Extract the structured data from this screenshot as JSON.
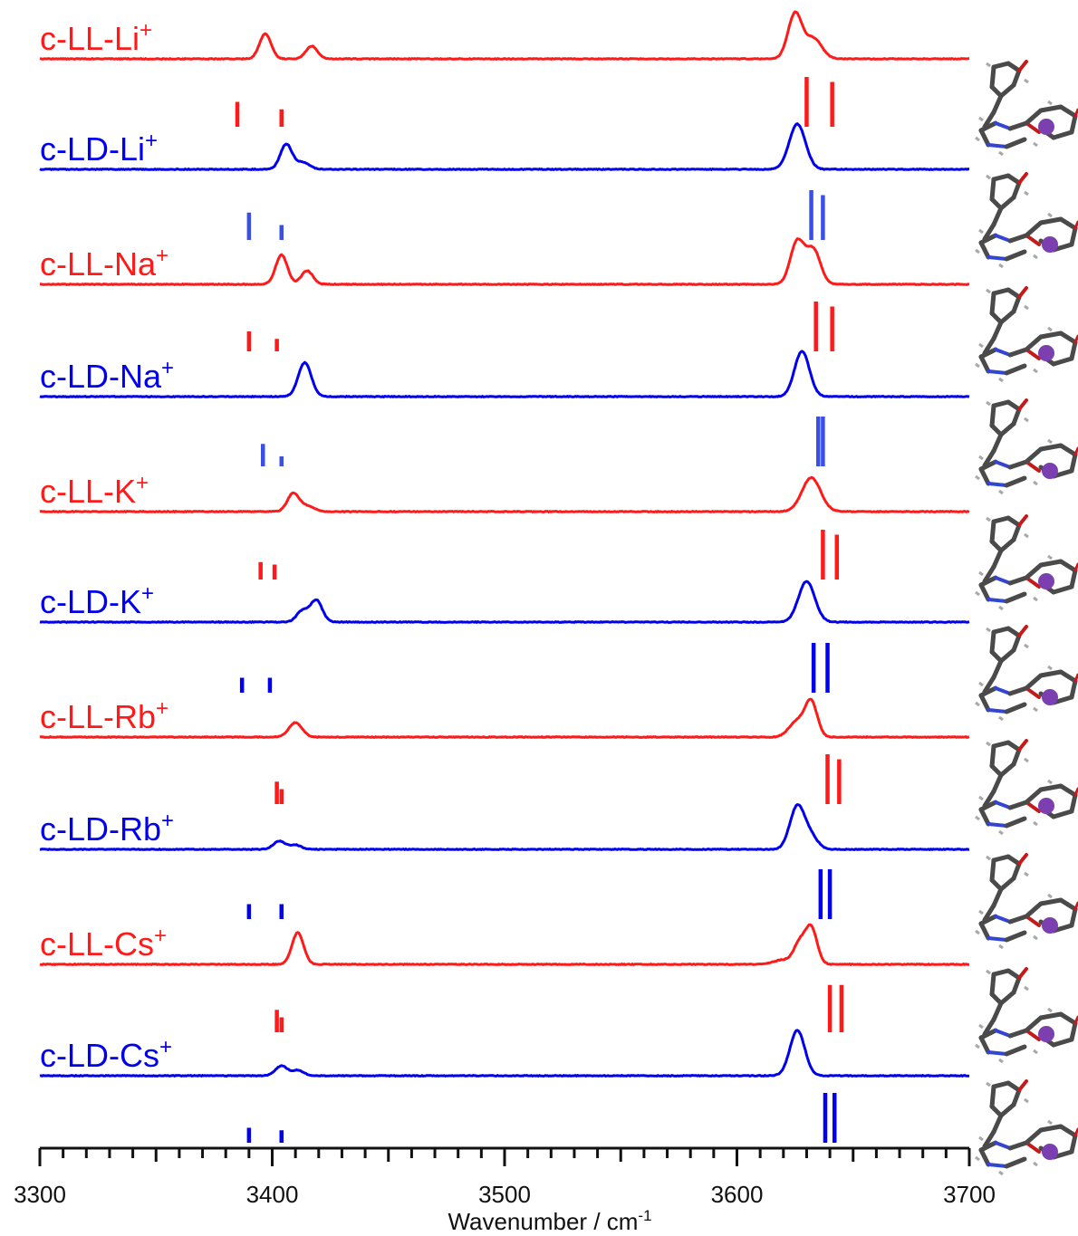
{
  "chart_data": {
    "type": "line",
    "xlabel": "Wavenumber / cm",
    "xlabel_superscript": "-1",
    "xlim": [
      3300,
      3700
    ],
    "x_ticks": [
      3300,
      3400,
      3500,
      3600,
      3700
    ],
    "minor_tick_step": 10,
    "grid": false,
    "colors": {
      "red": "#ff1a1a",
      "blue": "#0000ee",
      "stick_blue": "#3a4fe8",
      "atom_purple": "#7b3fb0"
    },
    "series": [
      {
        "label_base": "c-LL-Li",
        "label_sup": "+",
        "color": "red",
        "peaks": [
          [
            3397,
            0.55,
            2.5
          ],
          [
            3417,
            0.28,
            2.5
          ],
          [
            3625,
            1.0,
            3.0
          ],
          [
            3633,
            0.45,
            3.5
          ]
        ]
      },
      {
        "label_base": "c-LD-Li",
        "label_sup": "+",
        "color": "blue",
        "peaks": [
          [
            3406,
            0.55,
            2.5
          ],
          [
            3413,
            0.15,
            3.0
          ],
          [
            3626,
            1.0,
            3.5
          ]
        ]
      },
      {
        "label_base": "c-LL-Na",
        "label_sup": "+",
        "color": "red",
        "peaks": [
          [
            3404,
            0.65,
            2.5
          ],
          [
            3415,
            0.3,
            2.5
          ],
          [
            3626,
            0.95,
            3.0
          ],
          [
            3633,
            0.75,
            3.0
          ]
        ]
      },
      {
        "label_base": "c-LD-Na",
        "label_sup": "+",
        "color": "blue",
        "peaks": [
          [
            3414,
            0.75,
            2.8
          ],
          [
            3628,
            1.0,
            3.2
          ]
        ]
      },
      {
        "label_base": "c-LL-K",
        "label_sup": "+",
        "color": "red",
        "peaks": [
          [
            3409,
            0.4,
            2.5
          ],
          [
            3415,
            0.12,
            3.0
          ],
          [
            3632,
            0.75,
            4.0
          ]
        ]
      },
      {
        "label_base": "c-LD-K",
        "label_sup": "+",
        "color": "blue",
        "peaks": [
          [
            3413,
            0.25,
            2.5
          ],
          [
            3419,
            0.48,
            2.5
          ],
          [
            3630,
            0.9,
            3.5
          ]
        ]
      },
      {
        "label_base": "c-LL-Rb",
        "label_sup": "+",
        "color": "red",
        "peaks": [
          [
            3410,
            0.32,
            2.8
          ],
          [
            3626,
            0.35,
            3.5
          ],
          [
            3632,
            0.75,
            2.6
          ]
        ]
      },
      {
        "label_base": "c-LD-Rb",
        "label_sup": "+",
        "color": "blue",
        "peaks": [
          [
            3403,
            0.18,
            2.5
          ],
          [
            3410,
            0.1,
            2.5
          ],
          [
            3626,
            0.95,
            3.2
          ],
          [
            3632,
            0.25,
            3.0
          ]
        ]
      },
      {
        "label_base": "c-LL-Cs",
        "label_sup": "+",
        "color": "red",
        "peaks": [
          [
            3411,
            0.7,
            2.5
          ],
          [
            3620,
            0.1,
            4.0
          ],
          [
            3627,
            0.45,
            2.5
          ],
          [
            3632,
            0.8,
            2.5
          ]
        ]
      },
      {
        "label_base": "c-LD-Cs",
        "label_sup": "+",
        "color": "blue",
        "peaks": [
          [
            3404,
            0.22,
            2.5
          ],
          [
            3411,
            0.12,
            2.5
          ],
          [
            3626,
            1.0,
            3.2
          ]
        ]
      }
    ],
    "stick_spectra": [
      {
        "color": "red",
        "sticks": [
          [
            3385,
            0.5
          ],
          [
            3404,
            0.35
          ],
          [
            3630,
            1.0
          ],
          [
            3641,
            0.9
          ]
        ]
      },
      {
        "color": "stick_blue",
        "sticks": [
          [
            3390,
            0.55
          ],
          [
            3404,
            0.3
          ],
          [
            3632,
            1.0
          ],
          [
            3637,
            0.9
          ]
        ]
      },
      {
        "color": "red",
        "sticks": [
          [
            3390,
            0.4
          ],
          [
            3402,
            0.25
          ],
          [
            3634,
            1.0
          ],
          [
            3641,
            0.9
          ]
        ]
      },
      {
        "color": "stick_blue",
        "sticks": [
          [
            3396,
            0.45
          ],
          [
            3404,
            0.2
          ],
          [
            3635,
            1.0
          ],
          [
            3637,
            1.0
          ]
        ]
      },
      {
        "color": "red",
        "sticks": [
          [
            3395,
            0.35
          ],
          [
            3401,
            0.3
          ],
          [
            3637,
            1.0
          ],
          [
            3643,
            0.9
          ]
        ]
      },
      {
        "color": "blue",
        "sticks": [
          [
            3387,
            0.3
          ],
          [
            3399,
            0.3
          ],
          [
            3633,
            1.0
          ],
          [
            3639,
            1.0
          ]
        ]
      },
      {
        "color": "red",
        "sticks": [
          [
            3402,
            0.45
          ],
          [
            3404,
            0.3
          ],
          [
            3639,
            1.0
          ],
          [
            3644,
            0.9
          ]
        ]
      },
      {
        "color": "blue",
        "sticks": [
          [
            3390,
            0.3
          ],
          [
            3404,
            0.3
          ],
          [
            3636,
            1.0
          ],
          [
            3640,
            1.0
          ]
        ]
      },
      {
        "color": "red",
        "sticks": [
          [
            3402,
            0.45
          ],
          [
            3404,
            0.3
          ],
          [
            3640,
            0.95
          ],
          [
            3645,
            0.95
          ]
        ]
      },
      {
        "color": "blue",
        "sticks": [
          [
            3390,
            0.3
          ],
          [
            3404,
            0.25
          ],
          [
            3638,
            1.0
          ],
          [
            3642,
            1.0
          ]
        ]
      }
    ]
  }
}
